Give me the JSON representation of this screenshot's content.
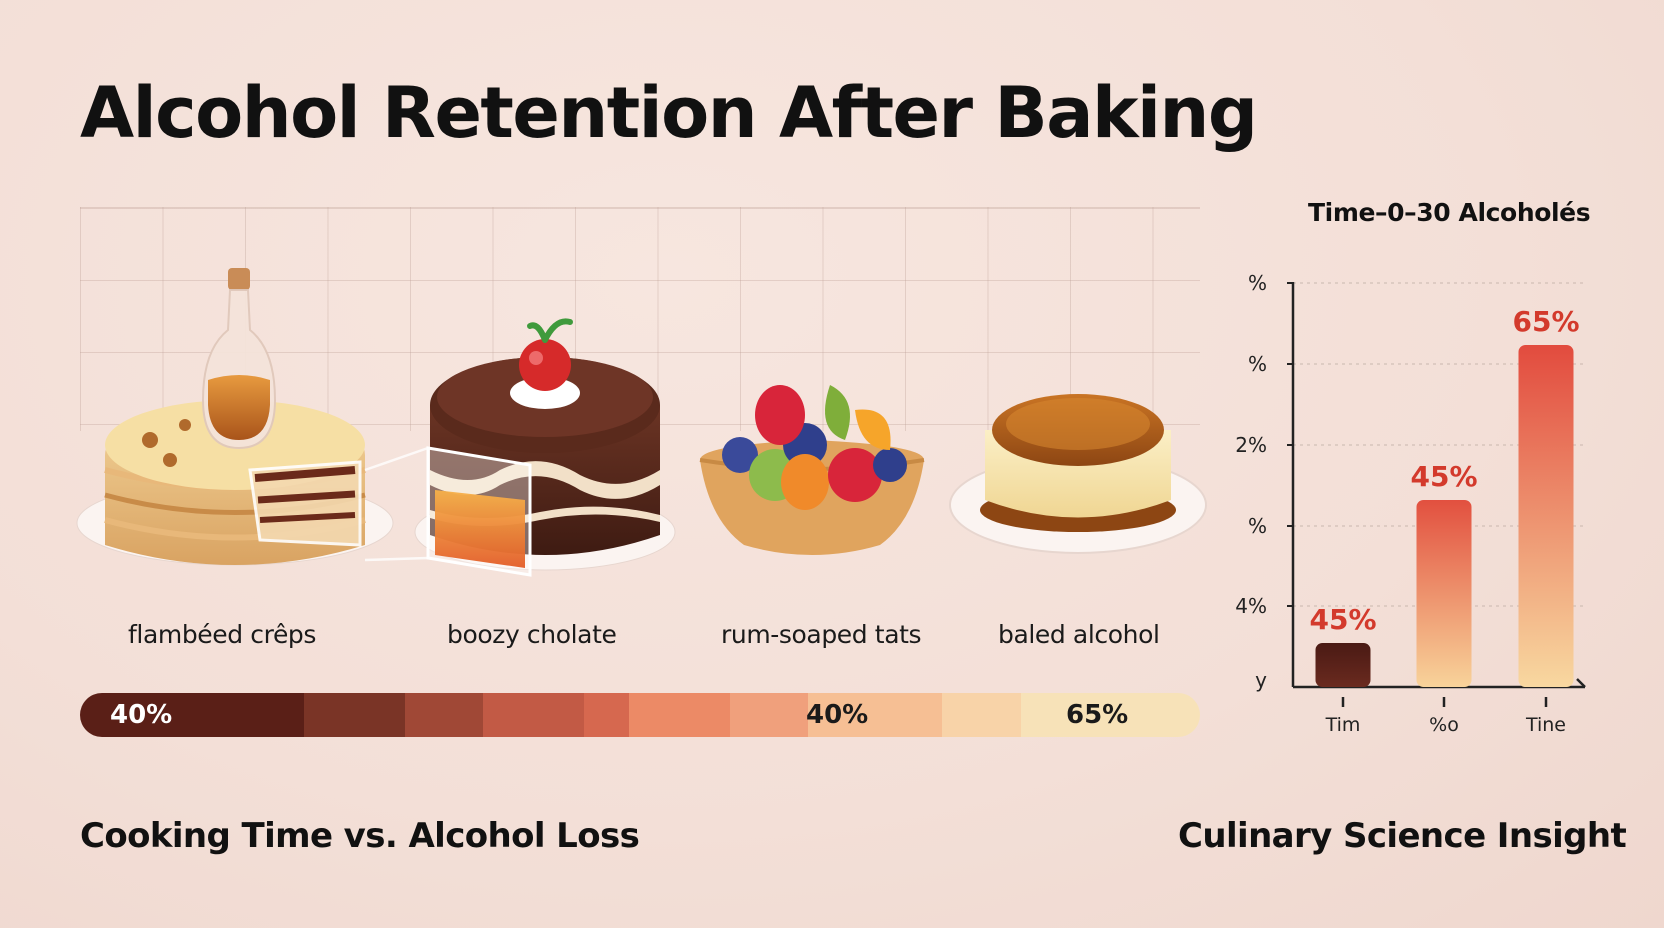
{
  "title": "Alcohol Retention After Baking",
  "desserts": [
    {
      "label": "flambéed crêps",
      "icon": "crepe-cake-with-liqueur-bottle-icon"
    },
    {
      "label": "boozy cholate",
      "icon": "chocolate-cake-with-cherry-icon"
    },
    {
      "label": "rum-soaped tats",
      "icon": "fruit-tart-icon"
    },
    {
      "label": "baled alcohol",
      "icon": "caramel-flan-icon"
    }
  ],
  "scale_bar": {
    "labels": [
      "40%",
      "40%",
      "65%"
    ],
    "colors": [
      "#5a1f17",
      "#7a3426",
      "#a04836",
      "#c25a45",
      "#d6684f",
      "#ec8a66",
      "#f0a07c",
      "#f6bf94",
      "#f8d3a8",
      "#f7e2b8"
    ]
  },
  "footer": {
    "left": "Cooking Time vs. Alcohol Loss",
    "right": "Culinary Science Insight"
  },
  "chart_data": {
    "type": "bar",
    "title": "Time–0–30 Alcoholés",
    "categories": [
      "Tim",
      "%o",
      "Tine"
    ],
    "values": [
      45,
      45,
      65
    ],
    "value_labels": [
      "45%",
      "45%",
      "65%"
    ],
    "y_tick_labels": [
      "y",
      "4%",
      "%",
      "2%",
      "%",
      "%"
    ],
    "colors": {
      "bar1": [
        "#6a2a1f",
        "#4a1a14"
      ],
      "bar2": [
        "#f8d39a",
        "#e2503f"
      ],
      "bar3": [
        "#f8d8a0",
        "#e24b3e"
      ],
      "value_label": "#d33a2c"
    },
    "grid": true
  }
}
